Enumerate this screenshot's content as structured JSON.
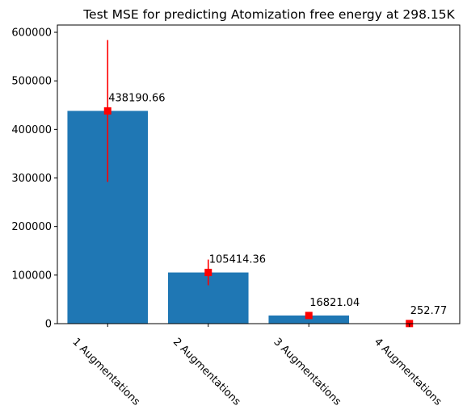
{
  "chart_data": {
    "type": "bar",
    "title": "Test MSE for predicting Atomization free energy at 298.15K",
    "xlabel": "",
    "ylabel": "",
    "categories": [
      "1 Augmentations",
      "2 Augmentations",
      "3 Augmentations",
      "4 Augmentations"
    ],
    "values": [
      438190.66,
      105414.36,
      16821.04,
      252.77
    ],
    "value_labels": [
      "438190.66",
      "105414.36",
      "16821.04",
      "252.77"
    ],
    "error_low": [
      292000,
      79000,
      13500,
      200
    ],
    "error_high": [
      584000,
      132000,
      20000,
      300
    ],
    "ylim": [
      0,
      615000
    ],
    "yticks": [
      0,
      100000,
      200000,
      300000,
      400000,
      500000,
      600000
    ],
    "ytick_labels": [
      "0",
      "100000",
      "200000",
      "300000",
      "400000",
      "500000",
      "600000"
    ],
    "grid": false,
    "legend": null,
    "colors": {
      "bar": "#1f77b4",
      "marker": "#ff0000",
      "errorbar": "#ff0000",
      "axis": "#000000"
    }
  }
}
